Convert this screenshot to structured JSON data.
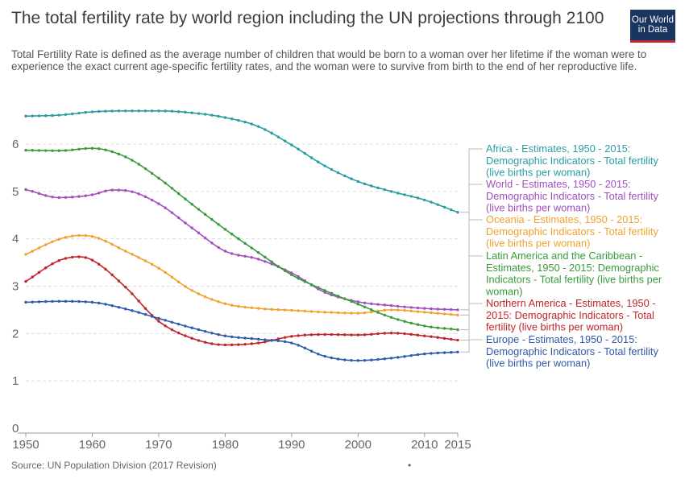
{
  "header": {
    "title": "The total fertility rate by world region including the UN projections through 2100",
    "subtitle": "Total Fertility Rate is defined as the average number of children that would be born to a woman over her lifetime if the woman were to experience the exact current age-specific fertility rates, and the woman were to survive from birth to the end of her reproductive life.",
    "logo_line1": "Our World",
    "logo_line2": "in Data"
  },
  "footer": {
    "source": "Source: UN Population Division (2017 Revision)",
    "dot": "•"
  },
  "colors": {
    "africa": "#2a9d9f",
    "world": "#a24fbf",
    "oceania": "#f0a22e",
    "latin_america": "#3b9a3b",
    "northern_america": "#c0252c",
    "europe": "#2f5aa8",
    "grid": "#dddddd",
    "connector": "#bbbbbb"
  },
  "chart_data": {
    "type": "line",
    "title": "",
    "xlabel": "",
    "ylabel": "",
    "xlim": [
      1950,
      2015
    ],
    "ylim": [
      0,
      6.9
    ],
    "grid": true,
    "legend_position": "right",
    "x_ticks": [
      {
        "value": 1950,
        "label": "1950"
      },
      {
        "value": 1960,
        "label": "1960"
      },
      {
        "value": 1970,
        "label": "1970"
      },
      {
        "value": 1980,
        "label": "1980"
      },
      {
        "value": 1990,
        "label": "1990"
      },
      {
        "value": 2000,
        "label": "2000"
      },
      {
        "value": 2010,
        "label": "2010"
      },
      {
        "value": 2015,
        "label": "2015"
      }
    ],
    "y_ticks": [
      {
        "value": 0,
        "label": "0"
      },
      {
        "value": 1,
        "label": "1"
      },
      {
        "value": 2,
        "label": "2"
      },
      {
        "value": 3,
        "label": "3"
      },
      {
        "value": 4,
        "label": "4"
      },
      {
        "value": 5,
        "label": "5"
      },
      {
        "value": 6,
        "label": "6"
      }
    ],
    "series": [
      {
        "key": "africa",
        "color": "#2a9d9f",
        "legend": [
          "Africa - Estimates, 1950 - 2015:",
          "Demographic Indicators - Total fertility",
          "(live births per woman)"
        ],
        "points": [
          [
            1950,
            6.59
          ],
          [
            1955,
            6.61
          ],
          [
            1960,
            6.68
          ],
          [
            1965,
            6.7
          ],
          [
            1970,
            6.7
          ],
          [
            1975,
            6.66
          ],
          [
            1980,
            6.56
          ],
          [
            1985,
            6.37
          ],
          [
            1990,
            5.98
          ],
          [
            1995,
            5.54
          ],
          [
            2000,
            5.21
          ],
          [
            2005,
            5.0
          ],
          [
            2010,
            4.82
          ],
          [
            2015,
            4.56
          ]
        ],
        "label_anchor": [
          2015,
          4.56
        ]
      },
      {
        "key": "world",
        "color": "#a24fbf",
        "legend": [
          "World - Estimates, 1950 - 2015:",
          "Demographic Indicators - Total fertility",
          "(live births per woman)"
        ],
        "points": [
          [
            1950,
            5.04
          ],
          [
            1955,
            4.87
          ],
          [
            1960,
            4.93
          ],
          [
            1963,
            5.03
          ],
          [
            1965,
            5.02
          ],
          [
            1970,
            4.74
          ],
          [
            1975,
            4.23
          ],
          [
            1980,
            3.74
          ],
          [
            1985,
            3.57
          ],
          [
            1990,
            3.28
          ],
          [
            1995,
            2.87
          ],
          [
            2000,
            2.67
          ],
          [
            2005,
            2.59
          ],
          [
            2010,
            2.53
          ],
          [
            2015,
            2.5
          ]
        ],
        "label_anchor": [
          2015,
          2.5
        ]
      },
      {
        "key": "oceania",
        "color": "#f0a22e",
        "legend": [
          "Oceania - Estimates, 1950 - 2015:",
          "Demographic Indicators - Total fertility",
          "(live births per woman)"
        ],
        "points": [
          [
            1950,
            3.67
          ],
          [
            1955,
            3.99
          ],
          [
            1958,
            4.07
          ],
          [
            1960,
            4.05
          ],
          [
            1965,
            3.74
          ],
          [
            1970,
            3.38
          ],
          [
            1975,
            2.91
          ],
          [
            1980,
            2.63
          ],
          [
            1985,
            2.53
          ],
          [
            1990,
            2.49
          ],
          [
            1995,
            2.45
          ],
          [
            2000,
            2.43
          ],
          [
            2005,
            2.5
          ],
          [
            2010,
            2.45
          ],
          [
            2015,
            2.39
          ]
        ],
        "label_anchor": [
          2015,
          2.39
        ]
      },
      {
        "key": "latin_america",
        "color": "#3b9a3b",
        "legend": [
          "Latin America and the Caribbean -",
          "Estimates, 1950 - 2015: Demographic",
          "Indicators - Total fertility (live births per",
          "woman)"
        ],
        "points": [
          [
            1950,
            5.87
          ],
          [
            1955,
            5.86
          ],
          [
            1960,
            5.91
          ],
          [
            1965,
            5.73
          ],
          [
            1970,
            5.28
          ],
          [
            1975,
            4.73
          ],
          [
            1980,
            4.2
          ],
          [
            1985,
            3.71
          ],
          [
            1990,
            3.24
          ],
          [
            1995,
            2.91
          ],
          [
            2000,
            2.62
          ],
          [
            2005,
            2.34
          ],
          [
            2010,
            2.16
          ],
          [
            2015,
            2.08
          ]
        ],
        "label_anchor": [
          2015,
          2.08
        ]
      },
      {
        "key": "northern_america",
        "color": "#c0252c",
        "legend": [
          "Northern America - Estimates, 1950 -",
          "2015: Demographic Indicators - Total",
          "fertility (live births per woman)"
        ],
        "points": [
          [
            1950,
            3.1
          ],
          [
            1955,
            3.54
          ],
          [
            1958,
            3.62
          ],
          [
            1960,
            3.55
          ],
          [
            1965,
            2.98
          ],
          [
            1970,
            2.26
          ],
          [
            1975,
            1.9
          ],
          [
            1980,
            1.76
          ],
          [
            1985,
            1.8
          ],
          [
            1990,
            1.94
          ],
          [
            1995,
            1.98
          ],
          [
            2000,
            1.97
          ],
          [
            2005,
            2.01
          ],
          [
            2010,
            1.95
          ],
          [
            2015,
            1.86
          ]
        ],
        "label_anchor": [
          2015,
          1.86
        ]
      },
      {
        "key": "europe",
        "color": "#2f5aa8",
        "legend": [
          "Europe - Estimates, 1950 - 2015:",
          "Demographic Indicators - Total fertility",
          "(live births per woman)"
        ],
        "points": [
          [
            1950,
            2.66
          ],
          [
            1955,
            2.68
          ],
          [
            1960,
            2.66
          ],
          [
            1965,
            2.52
          ],
          [
            1970,
            2.32
          ],
          [
            1975,
            2.12
          ],
          [
            1980,
            1.95
          ],
          [
            1985,
            1.88
          ],
          [
            1990,
            1.8
          ],
          [
            1995,
            1.52
          ],
          [
            2000,
            1.43
          ],
          [
            2005,
            1.48
          ],
          [
            2010,
            1.57
          ],
          [
            2015,
            1.61
          ]
        ],
        "label_anchor": [
          2015,
          1.61
        ]
      }
    ]
  }
}
